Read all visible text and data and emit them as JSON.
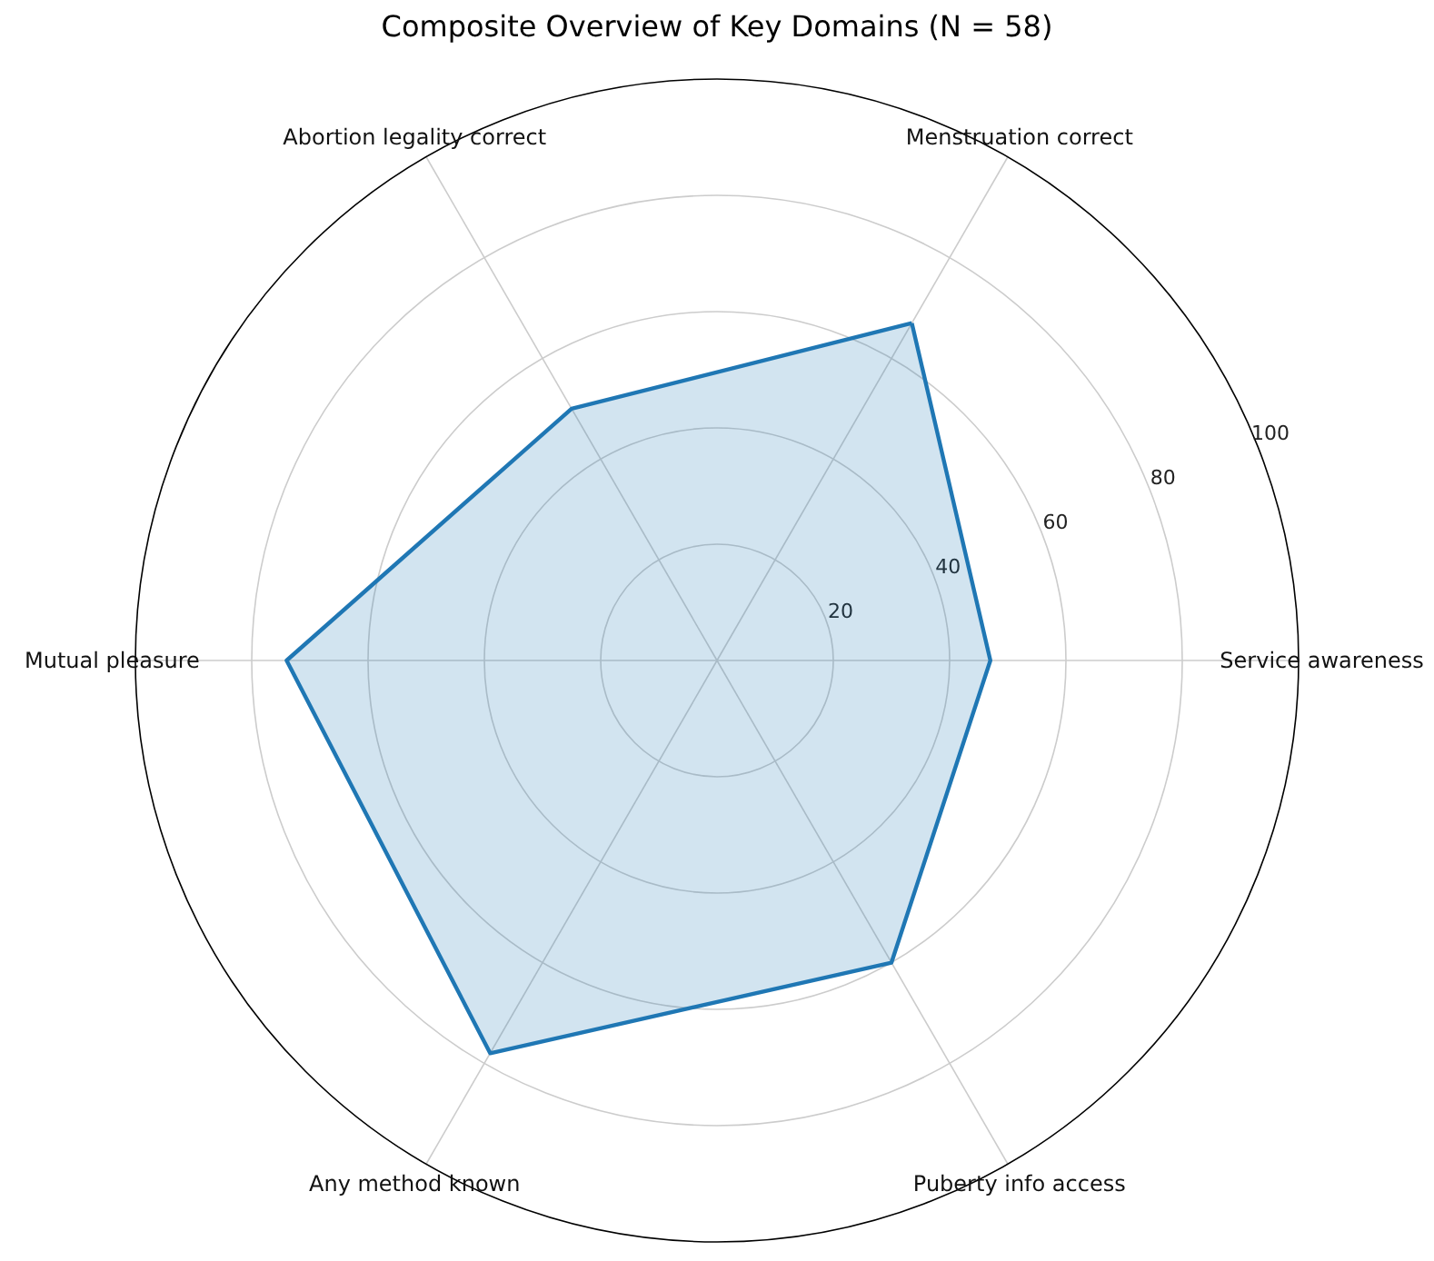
{
  "chart_data": {
    "type": "radar",
    "title": "Composite Overview of Key Domains (N = 58)",
    "categories": [
      "Menstruation correct",
      "Service awareness",
      "Puberty info access",
      "Any method known",
      "Mutual pleasure",
      "Abortion legality correct"
    ],
    "series": [
      {
        "color": "#1f77b4",
        "values": [
          67,
          47,
          60,
          78,
          74,
          50
        ]
      }
    ],
    "ylim": [
      0,
      100
    ],
    "yticks": [
      20,
      40,
      60,
      80,
      100
    ],
    "grid": true
  }
}
